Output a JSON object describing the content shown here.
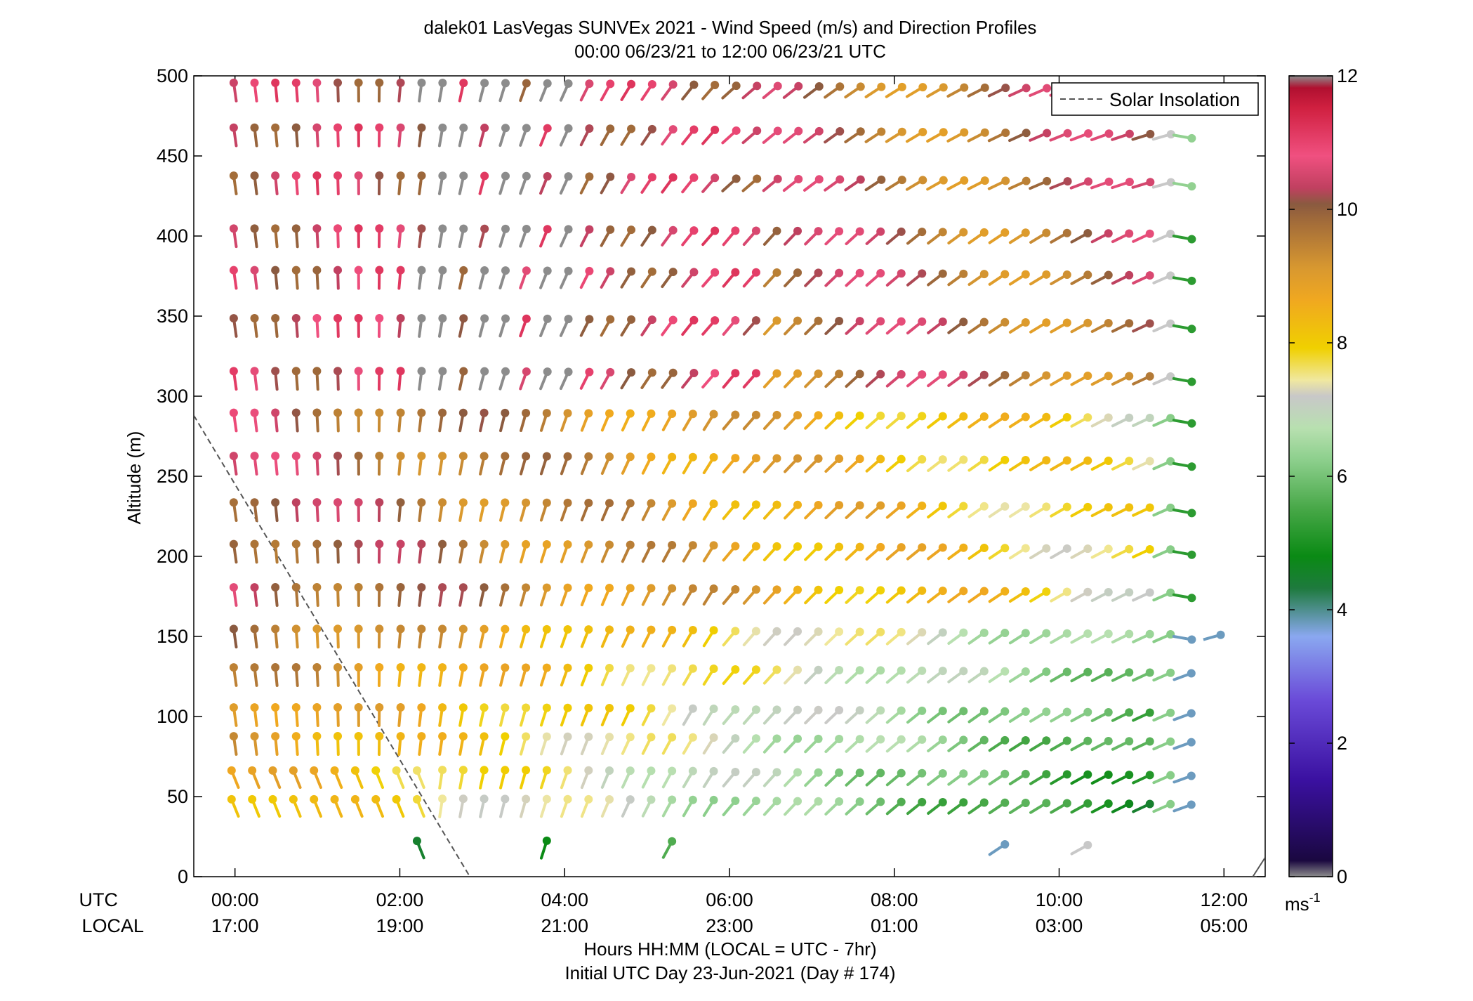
{
  "chart_data": {
    "type": "scatter",
    "title": "dalek01 LasVegas SUNVEx 2021 - Wind Speed (m/s) and Direction Profiles",
    "subtitle": "00:00 06/23/21 to 12:00 06/23/21  UTC",
    "ylabel": "Altitude (m)",
    "xlabel": "Hours HH:MM  (LOCAL = UTC - 7hr)",
    "xlabel2": "Initial UTC Day 23-Jun-2021 (Day # 174)",
    "row_labels": {
      "utc": "UTC",
      "local": "LOCAL"
    },
    "xlim": [
      -0.5,
      12.5
    ],
    "ylim": [
      0,
      500
    ],
    "x_ticks": [
      0,
      2,
      4,
      6,
      8,
      10,
      12
    ],
    "x_tick_labels_utc": [
      "00:00",
      "02:00",
      "04:00",
      "06:00",
      "08:00",
      "10:00",
      "12:00"
    ],
    "x_tick_labels_local": [
      "17:00",
      "19:00",
      "21:00",
      "23:00",
      "01:00",
      "03:00",
      "05:00"
    ],
    "y_ticks": [
      0,
      50,
      100,
      150,
      200,
      250,
      300,
      350,
      400,
      450,
      500
    ],
    "y_tick_labels": [
      "0",
      "50",
      "100",
      "150",
      "200",
      "250",
      "300",
      "350",
      "400",
      "450",
      "500"
    ],
    "levels_m": [
      17,
      43,
      61,
      82,
      100,
      125,
      149,
      175,
      202,
      228,
      257,
      284,
      310,
      343,
      373,
      399,
      432,
      462,
      490
    ],
    "time_step_h": 0.25,
    "time_start_h": 0,
    "time_end_h": 11.5,
    "legend": {
      "label": "Solar Insolation",
      "position": "top-right"
    },
    "solar_insolation_line": [
      [
        -0.5,
        288
      ],
      [
        2.85,
        0
      ]
    ],
    "colorbar": {
      "range": [
        0,
        12
      ],
      "ticks": [
        "0",
        "2",
        "4",
        "6",
        "8",
        "10",
        "12"
      ],
      "units_label": "ms",
      "units_exp": "-1",
      "stops": [
        [
          0.0,
          "#8c8c8c"
        ],
        [
          0.02,
          "#1a0840"
        ],
        [
          0.12,
          "#3a10a0"
        ],
        [
          0.22,
          "#6a4ad8"
        ],
        [
          0.3,
          "#8aa8f0"
        ],
        [
          0.36,
          "#1e7a3e"
        ],
        [
          0.4,
          "#0a8a14"
        ],
        [
          0.46,
          "#48a848"
        ],
        [
          0.52,
          "#8ccf8c"
        ],
        [
          0.56,
          "#b8e0b0"
        ],
        [
          0.6,
          "#c8c8c8"
        ],
        [
          0.62,
          "#f0e8a0"
        ],
        [
          0.66,
          "#f0d000"
        ],
        [
          0.72,
          "#f0a820"
        ],
        [
          0.76,
          "#d89830"
        ],
        [
          0.82,
          "#a06a3a"
        ],
        [
          0.84,
          "#8a5a40"
        ],
        [
          0.86,
          "#c04060"
        ],
        [
          0.9,
          "#f05080"
        ],
        [
          0.96,
          "#d02040"
        ],
        [
          0.985,
          "#b01030"
        ],
        [
          1.0,
          "#8c8c8c"
        ]
      ]
    },
    "wind_model": "barb direction and color reconstructed from speed/direction fields estimated from the image"
  }
}
